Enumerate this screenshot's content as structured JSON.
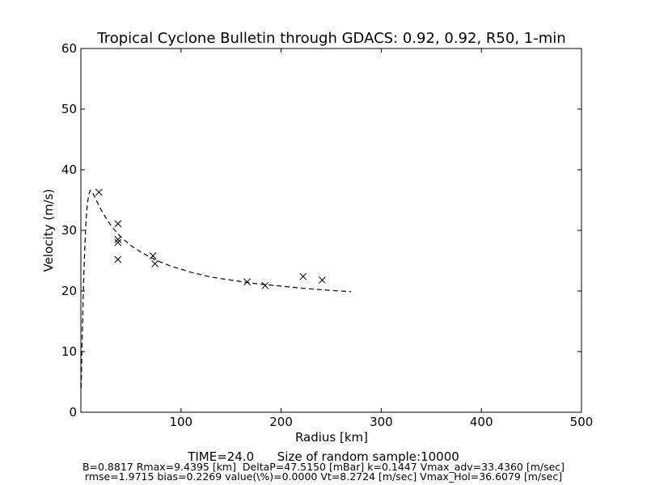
{
  "chart_data": {
    "type": "scatter",
    "title": "Tropical Cyclone Bulletin through GDACS: 0.92, 0.92, R50, 1-min",
    "xlabel": "Radius [km]",
    "ylabel": "Velocity (m/s)",
    "xlim": [
      0,
      500
    ],
    "ylim": [
      0,
      60
    ],
    "xticks": [
      100,
      200,
      300,
      400,
      500
    ],
    "yticks": [
      0,
      10,
      20,
      30,
      40,
      50,
      60
    ],
    "grid": false,
    "observations": {
      "marker": "x",
      "x": [
        18,
        37,
        37,
        37,
        37,
        72,
        74,
        166,
        184,
        222,
        241
      ],
      "y": [
        36.3,
        31.1,
        28.5,
        28.0,
        25.2,
        25.8,
        24.5,
        21.5,
        20.9,
        22.4,
        21.8
      ]
    },
    "model_curve": {
      "style": "dashed",
      "x": [
        0.3,
        1,
        2,
        3,
        4,
        5,
        6,
        7,
        8,
        9.4,
        11,
        13,
        15,
        18,
        22,
        27,
        33,
        40,
        50,
        60,
        75,
        90,
        110,
        130,
        150,
        175,
        200,
        225,
        250,
        270
      ],
      "y": [
        4.0,
        10.0,
        17.0,
        22.9,
        27.6,
        31.1,
        33.5,
        35.0,
        35.9,
        36.6,
        36.4,
        35.8,
        35.1,
        34.1,
        32.9,
        31.5,
        30.2,
        28.9,
        27.5,
        26.4,
        25.1,
        24.1,
        23.1,
        22.3,
        21.8,
        21.2,
        20.8,
        20.4,
        20.1,
        19.9
      ]
    }
  },
  "footer": {
    "line1": "TIME=24.0      Size of random sample:10000",
    "line2": "B=0.8817 Rmax=9.4395 [km]  DeltaP=47.5150 [mBar] k=0.1447 Vmax_adv=33.4360 [m/sec]",
    "line3": "rmse=1.9715 bias=0.2269 value(\\%)=0.0000 Vt=8.2724 [m/sec] Vmax_Hol=36.6079 [m/sec]"
  }
}
